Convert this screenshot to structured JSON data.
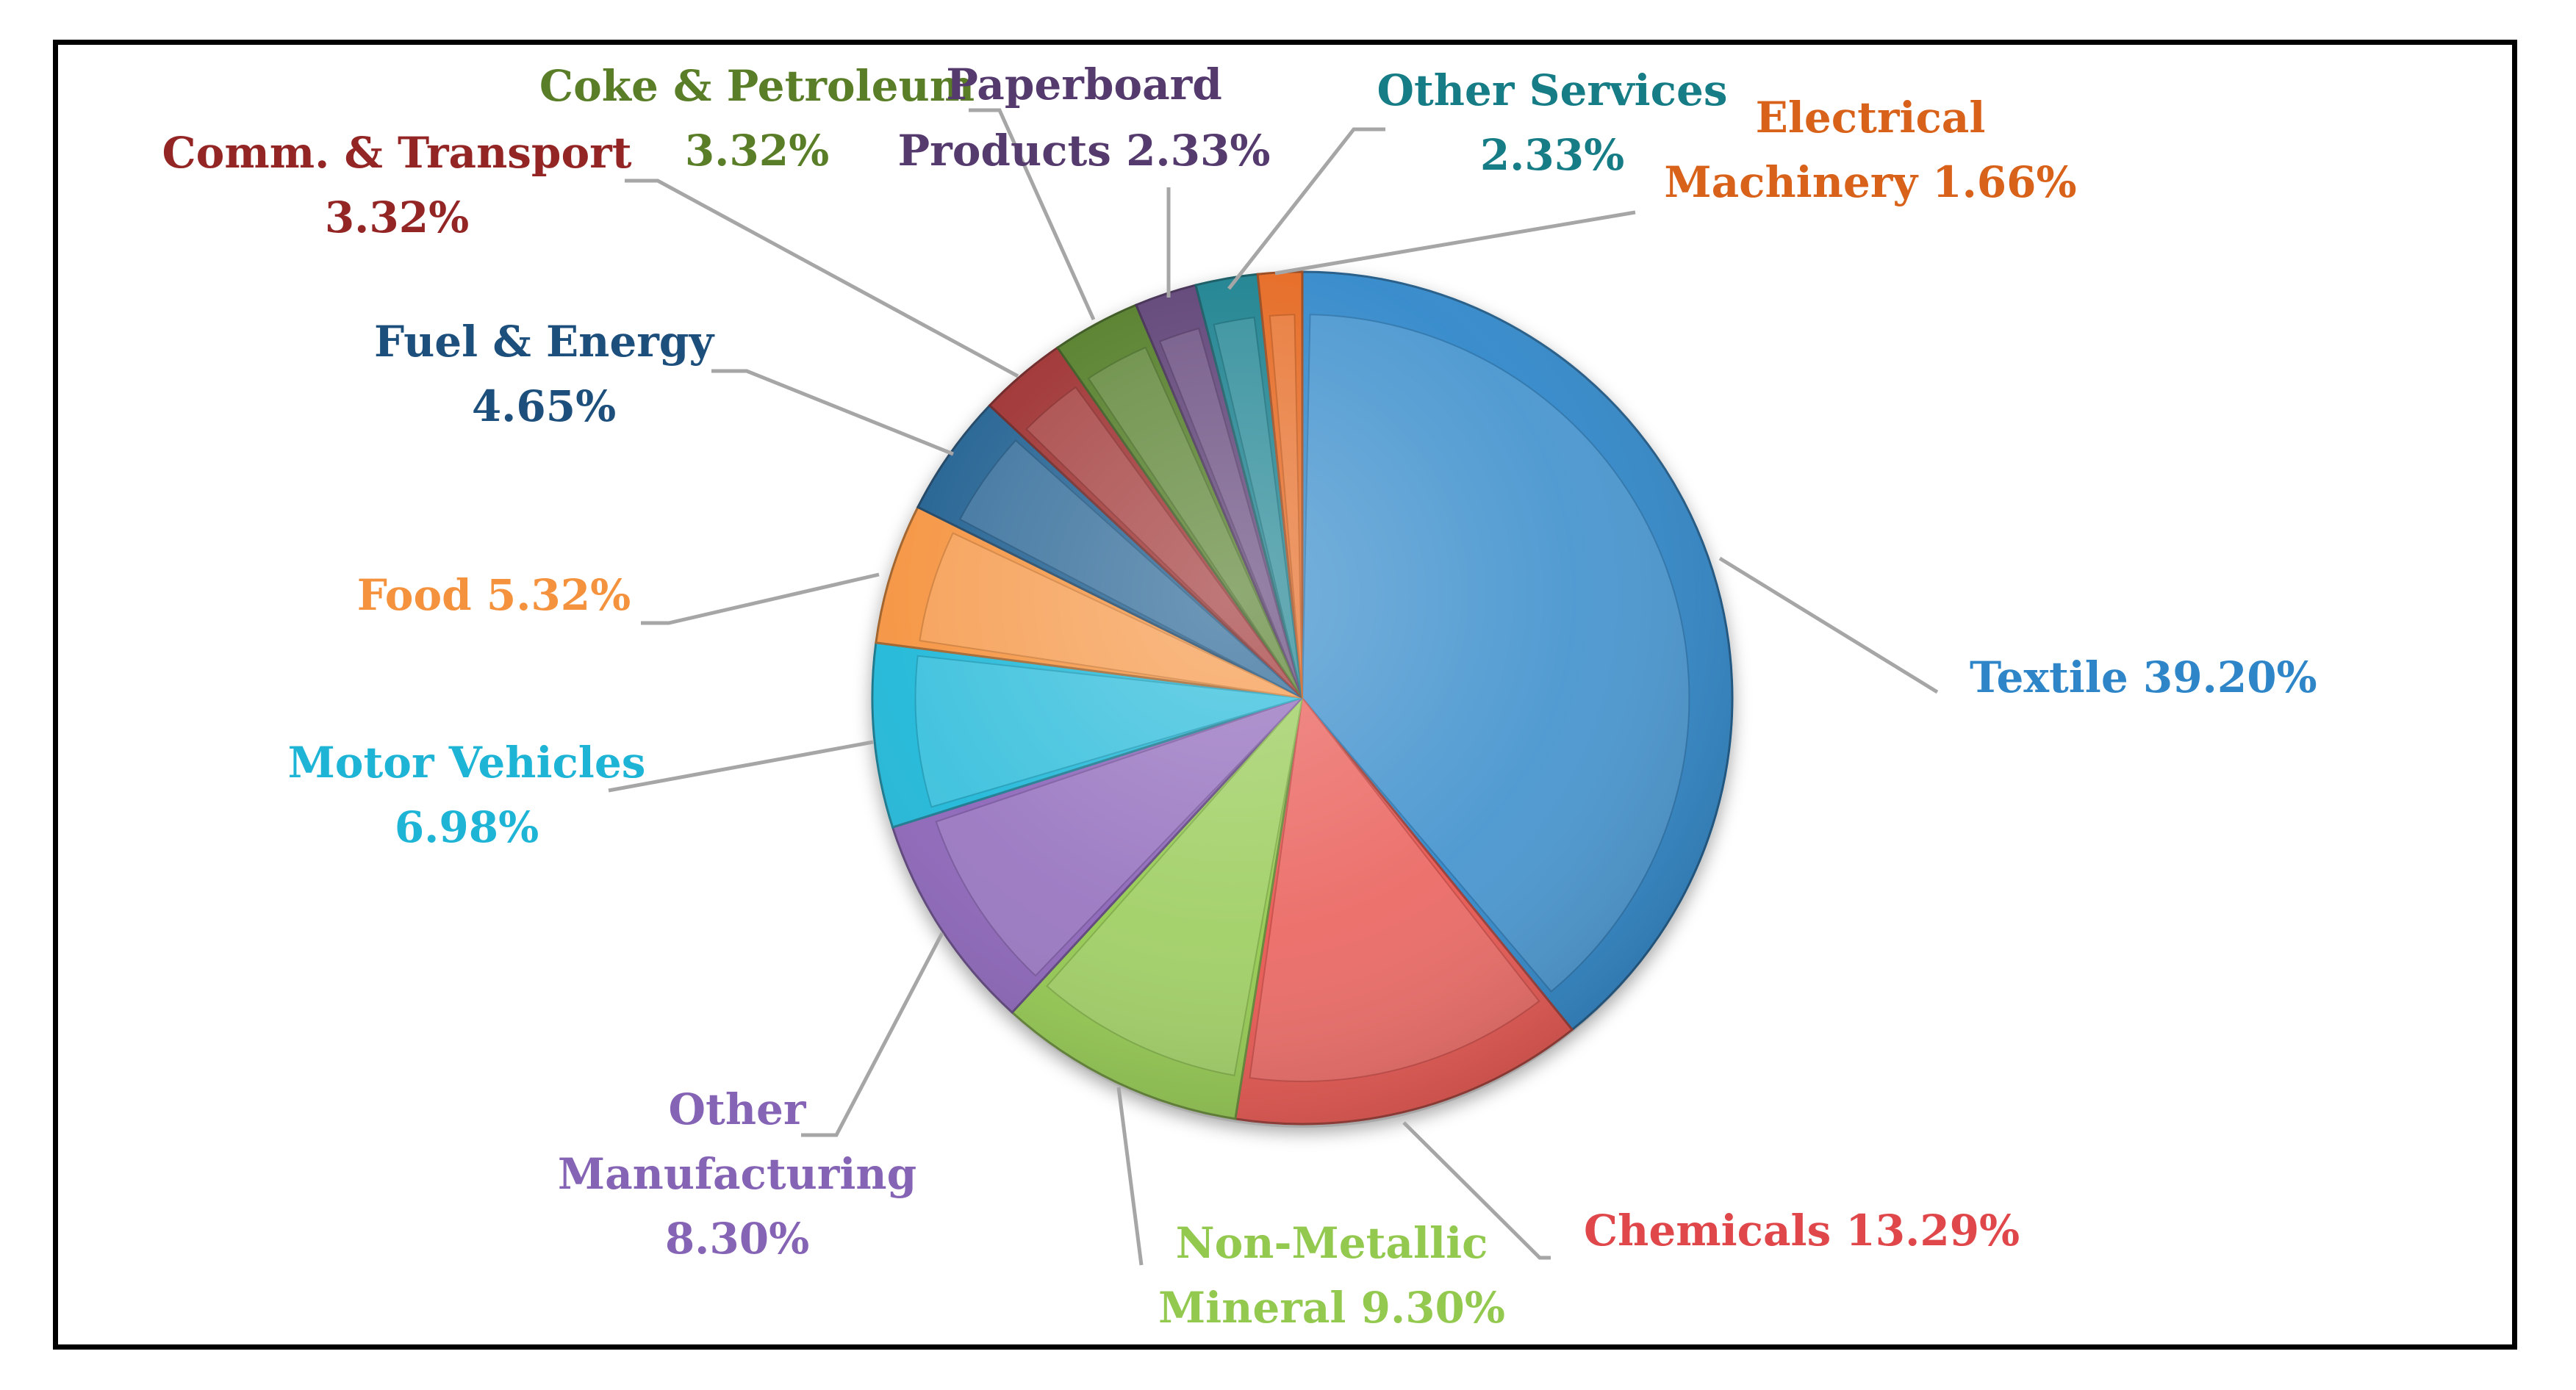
{
  "chart_data": {
    "type": "pie",
    "title": "",
    "units": "%",
    "slices": [
      {
        "key": "textile",
        "lines": [
          "Textile 39.20%"
        ],
        "value": 39.2,
        "color": "#2e86c9",
        "label_color": "#2e86c9"
      },
      {
        "key": "chemicals",
        "lines": [
          "Chemicals 13.29%"
        ],
        "value": 13.29,
        "color": "#e8544f",
        "label_color": "#e0474a"
      },
      {
        "key": "non-metallic-mineral",
        "lines": [
          "Non-Metallic",
          "Mineral  9.30%"
        ],
        "value": 9.3,
        "color": "#93c94f",
        "label_color": "#93c94f"
      },
      {
        "key": "other-manufacturing",
        "lines": [
          "Other",
          "Manufacturing",
          "8.30%"
        ],
        "value": 8.3,
        "color": "#8b63b8",
        "label_color": "#8664b5"
      },
      {
        "key": "motor-vehicles",
        "lines": [
          "Motor Vehicles",
          "6.98%"
        ],
        "value": 6.98,
        "color": "#1eb7d8",
        "label_color": "#1eb4d6"
      },
      {
        "key": "food",
        "lines": [
          "Food 5.32%"
        ],
        "value": 5.32,
        "color": "#f5923e",
        "label_color": "#f5923e"
      },
      {
        "key": "fuel-energy",
        "lines": [
          "Fuel & Energy",
          "4.65%"
        ],
        "value": 4.65,
        "color": "#1d5d8f",
        "label_color": "#1d4f7c"
      },
      {
        "key": "comm-transport",
        "lines": [
          "Comm. & Transport",
          "3.32%"
        ],
        "value": 3.32,
        "color": "#9b2a2a",
        "label_color": "#942525"
      },
      {
        "key": "coke-petroleum",
        "lines": [
          "Coke & Petroleum",
          "3.32%"
        ],
        "value": 3.32,
        "color": "#4f7a24",
        "label_color": "#5a7e27"
      },
      {
        "key": "paperboard-products",
        "lines": [
          "Paperboard",
          "Products 2.33%"
        ],
        "value": 2.33,
        "color": "#5a3c73",
        "label_color": "#553a6e"
      },
      {
        "key": "other-services",
        "lines": [
          "Other Services",
          "2.33%"
        ],
        "value": 2.33,
        "color": "#137e8c",
        "label_color": "#167c86"
      },
      {
        "key": "electrical-machinery",
        "lines": [
          "Electrical",
          "Machinery  1.66%"
        ],
        "value": 1.66,
        "color": "#e5651b",
        "label_color": "#d9621a"
      }
    ]
  }
}
